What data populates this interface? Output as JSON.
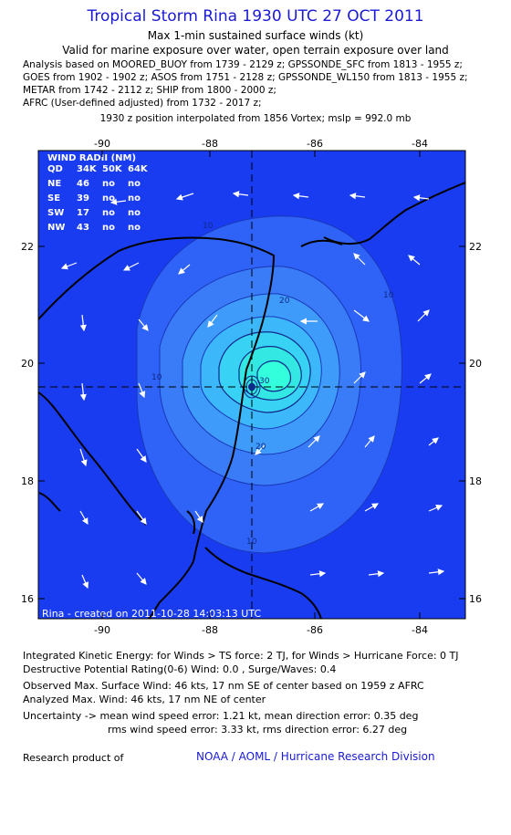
{
  "header": {
    "title": "Tropical Storm Rina 1930 UTC 27 OCT 2011",
    "subtitle": "Max 1-min sustained surface winds (kt)",
    "valid": "Valid for marine exposure over water, open terrain exposure over land",
    "analysis_lines": [
      "Analysis based on MOORED_BUOY from 1739 - 2129 z; GPSSONDE_SFC from 1813 - 1955 z;",
      "GOES from 1902 - 1902 z; ASOS from 1751 - 2128 z; GPSSONDE_WL150 from 1813 - 1955 z;",
      "METAR from 1742 - 2112 z; SHIP from 1800 - 2000 z;",
      "AFRC (User-defined adjusted) from 1732 - 2017 z;"
    ],
    "interp": "1930 z position interpolated from 1856 Vortex; mslp = 992.0 mb"
  },
  "map": {
    "lon_ticks": [
      "-90",
      "-88",
      "-86",
      "-84"
    ],
    "lat_ticks": [
      "22",
      "20",
      "18",
      "16"
    ],
    "contour_labels": [
      "10",
      "10",
      "10",
      "10",
      "20",
      "20",
      "30"
    ],
    "wind_radii": {
      "title": "WIND RADII (NM)",
      "header": [
        "QD",
        "34K",
        "50K",
        "64K"
      ],
      "rows": [
        [
          "NE",
          "46",
          "no",
          "no"
        ],
        [
          "SE",
          "39",
          "no",
          "no"
        ],
        [
          "SW",
          "17",
          "no",
          "no"
        ],
        [
          "NW",
          "43",
          "no",
          "no"
        ]
      ]
    },
    "credit": "Rina - created on 2011-10-28 14:03:13 UTC",
    "colors": {
      "ocean": "#1a3cf0",
      "land_line": "#000000",
      "max_wind": "#33ffdd"
    }
  },
  "footer": {
    "ike": "Integrated Kinetic Energy:  for Winds > TS force: 2 TJ,  for Winds > Hurricane Force: 0 TJ",
    "dpr": "Destructive Potential Rating(0-6)   Wind: 0.0 , Surge/Waves: 0.4",
    "obs": "Observed Max. Surface Wind: 46 kts, 17 nm SE of center based on 1959 z AFRC",
    "analyzed": "Analyzed Max. Wind: 46 kts, 17 nm NE of center",
    "unc1": "Uncertainty -> mean wind speed error: 1.21 kt,   mean direction error: 0.35 deg",
    "unc2": "rms wind speed error: 3.33 kt,   rms direction error: 6.27 deg",
    "research": "Research product of",
    "org": "NOAA / AOML / Hurricane Research Division"
  }
}
